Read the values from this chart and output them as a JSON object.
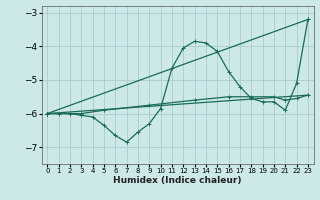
{
  "xlabel": "Humidex (Indice chaleur)",
  "xlim": [
    -0.5,
    23.5
  ],
  "ylim": [
    -7.5,
    -2.8
  ],
  "yticks": [
    -7,
    -6,
    -5,
    -4,
    -3
  ],
  "xticks": [
    0,
    1,
    2,
    3,
    4,
    5,
    6,
    7,
    8,
    9,
    10,
    11,
    12,
    13,
    14,
    15,
    16,
    17,
    18,
    19,
    20,
    21,
    22,
    23
  ],
  "bg_color": "#cce8e8",
  "grid_color": "#aacccc",
  "line_color": "#1a6b5a",
  "lines": [
    {
      "x": [
        0,
        1,
        2,
        3,
        4,
        5,
        6,
        7,
        8,
        9,
        10,
        11,
        12,
        13,
        14,
        15,
        16,
        17,
        18,
        19,
        20,
        21,
        22,
        23
      ],
      "y": [
        -6.0,
        -6.0,
        -6.0,
        -6.05,
        -6.1,
        -6.35,
        -6.65,
        -6.85,
        -6.55,
        -6.3,
        -5.85,
        -4.65,
        -4.05,
        -3.85,
        -3.9,
        -4.15,
        -4.75,
        -5.2,
        -5.55,
        -5.65,
        -5.65,
        -5.9,
        -5.1,
        -3.2
      ],
      "marker": true
    },
    {
      "x": [
        0,
        23
      ],
      "y": [
        -6.0,
        -3.2
      ],
      "marker": true
    },
    {
      "x": [
        0,
        23
      ],
      "y": [
        -6.0,
        -5.45
      ],
      "marker": true
    },
    {
      "x": [
        0,
        3,
        5,
        9,
        13,
        16,
        18,
        20,
        21,
        22,
        23
      ],
      "y": [
        -6.0,
        -6.0,
        -5.9,
        -5.75,
        -5.6,
        -5.5,
        -5.5,
        -5.5,
        -5.6,
        -5.55,
        -5.45
      ],
      "marker": true
    }
  ]
}
